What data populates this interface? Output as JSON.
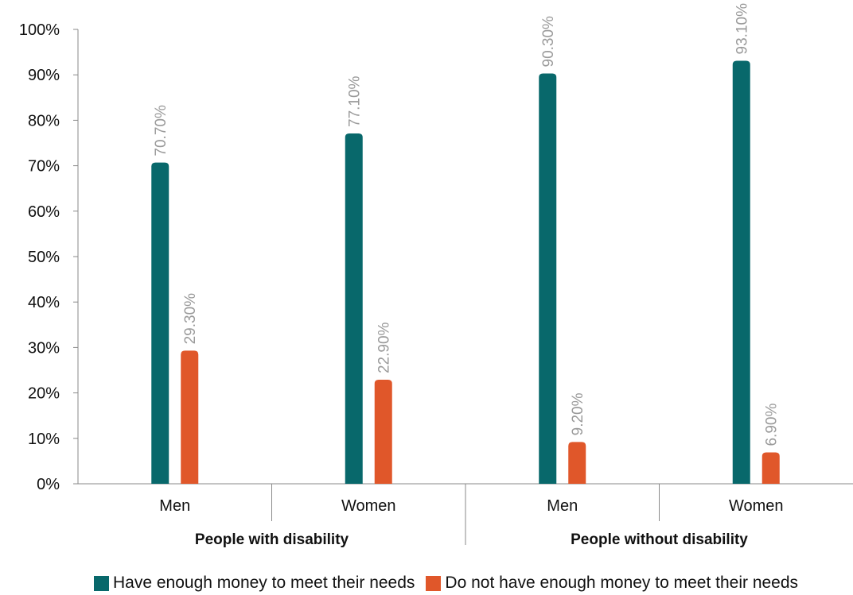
{
  "chart_data": {
    "type": "bar",
    "title": "",
    "xlabel": "",
    "ylabel": "",
    "ylim": [
      0,
      100
    ],
    "yticks": [
      "0%",
      "10%",
      "20%",
      "30%",
      "40%",
      "50%",
      "60%",
      "70%",
      "80%",
      "90%",
      "100%"
    ],
    "groups": [
      "People with disability",
      "People without disability"
    ],
    "categories": [
      "Men",
      "Women",
      "Men",
      "Women"
    ],
    "series": [
      {
        "name": "Have enough money to meet their needs",
        "color": "#08686b",
        "values": [
          70.7,
          77.1,
          90.3,
          93.1
        ],
        "labels": [
          "70.70%",
          "77.10%",
          "90.30%",
          "93.10%"
        ]
      },
      {
        "name": "Do not have enough money to meet their needs",
        "color": "#e0572a",
        "values": [
          29.3,
          22.9,
          9.2,
          6.9
        ],
        "labels": [
          "29.30%",
          "22.90%",
          "9.20%",
          "6.90%"
        ]
      }
    ],
    "grid": false,
    "legend_position": "bottom"
  }
}
